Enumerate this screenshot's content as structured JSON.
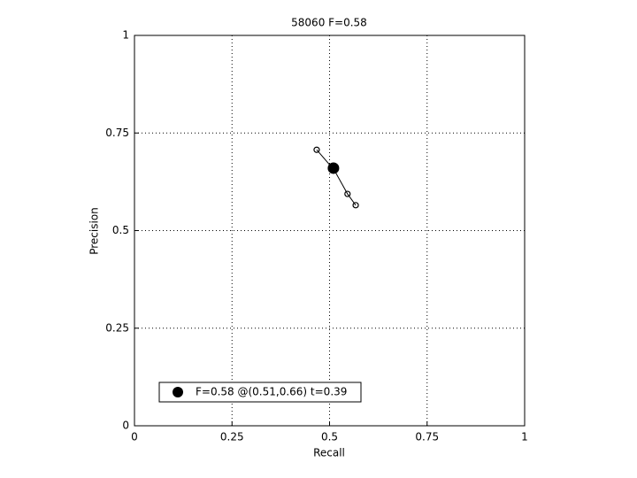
{
  "chart_data": {
    "type": "line",
    "title": "58060 F=0.58",
    "xlabel": "Recall",
    "ylabel": "Precision",
    "xlim": [
      0,
      1
    ],
    "ylim": [
      0,
      1
    ],
    "xticks": [
      0,
      0.25,
      0.5,
      0.75,
      1
    ],
    "yticks": [
      0,
      0.25,
      0.5,
      0.75,
      1
    ],
    "grid": true,
    "legend": "lower left",
    "series": [
      {
        "x": [
          0.467,
          0.512,
          0.546,
          0.567
        ],
        "values": [
          0.707,
          0.655,
          0.594,
          0.565
        ],
        "color": "#000000"
      },
      {
        "name": "F=0.58 @(0.51,0.66) t=0.39",
        "x": [
          0.51
        ],
        "values": [
          0.66
        ],
        "color": "#000000"
      }
    ]
  }
}
